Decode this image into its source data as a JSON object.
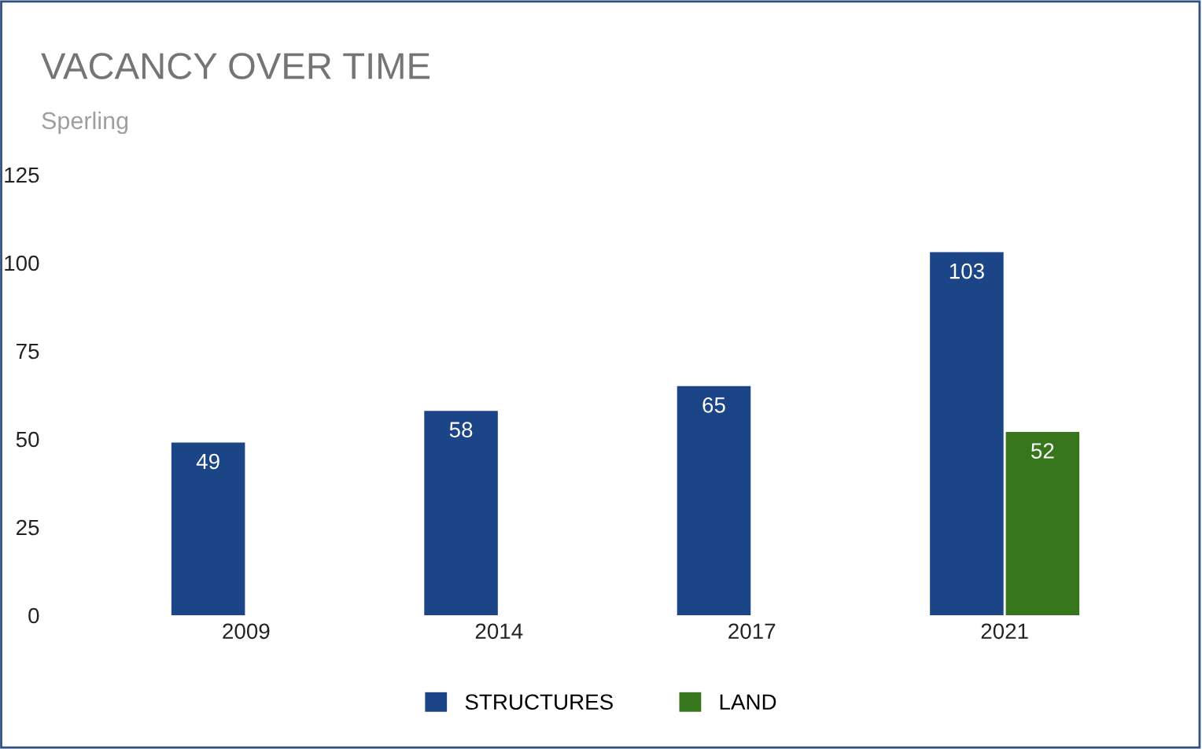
{
  "chart_data": {
    "type": "bar",
    "title": "VACANCY OVER TIME",
    "subtitle": "Sperling",
    "categories": [
      "2009",
      "2014",
      "2017",
      "2021"
    ],
    "series": [
      {
        "name": "STRUCTURES",
        "color": "#1c4587",
        "values": [
          49,
          58,
          65,
          103
        ]
      },
      {
        "name": "LAND",
        "color": "#38761d",
        "values": [
          null,
          null,
          null,
          52
        ]
      }
    ],
    "ylim": [
      0,
      125
    ],
    "yticks": [
      0,
      25,
      50,
      75,
      100,
      125
    ],
    "grid": false,
    "legend": "bottom",
    "data_labels": true
  }
}
